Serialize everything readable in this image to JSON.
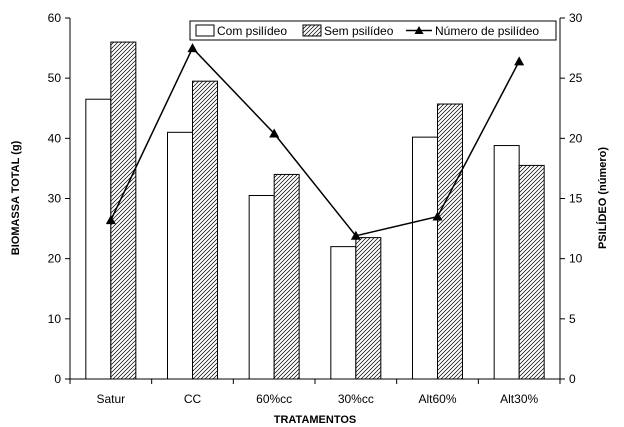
{
  "chart_data": {
    "type": "bar",
    "title": "",
    "xlabel": "TRATAMENTOS",
    "ylabel": "BIOMASSA TOTAL (g)",
    "y2label": "PSILÍDEO (número)",
    "categories": [
      "Satur",
      "CC",
      "60%cc",
      "30%cc",
      "Alt60%",
      "Alt30%"
    ],
    "ylim": [
      0,
      60
    ],
    "yticks": [
      0,
      10,
      20,
      30,
      40,
      50,
      60
    ],
    "y2lim": [
      0,
      30
    ],
    "y2ticks": [
      0,
      5,
      10,
      15,
      20,
      25,
      30
    ],
    "grid": false,
    "legend_position": "top-right",
    "series": [
      {
        "name": "Com psilídeo",
        "kind": "bar",
        "axis": "left",
        "fill": "white",
        "values": [
          46.5,
          41.0,
          30.5,
          22.0,
          40.2,
          38.8
        ]
      },
      {
        "name": "Sem psilídeo",
        "kind": "bar",
        "axis": "left",
        "fill": "hatched",
        "values": [
          56.0,
          49.5,
          34.0,
          23.5,
          45.7,
          35.5
        ]
      },
      {
        "name": "Número de psilídeo",
        "kind": "line",
        "axis": "right",
        "marker": "triangle",
        "values": [
          13.2,
          27.5,
          20.4,
          11.9,
          13.5,
          26.4
        ]
      }
    ]
  }
}
